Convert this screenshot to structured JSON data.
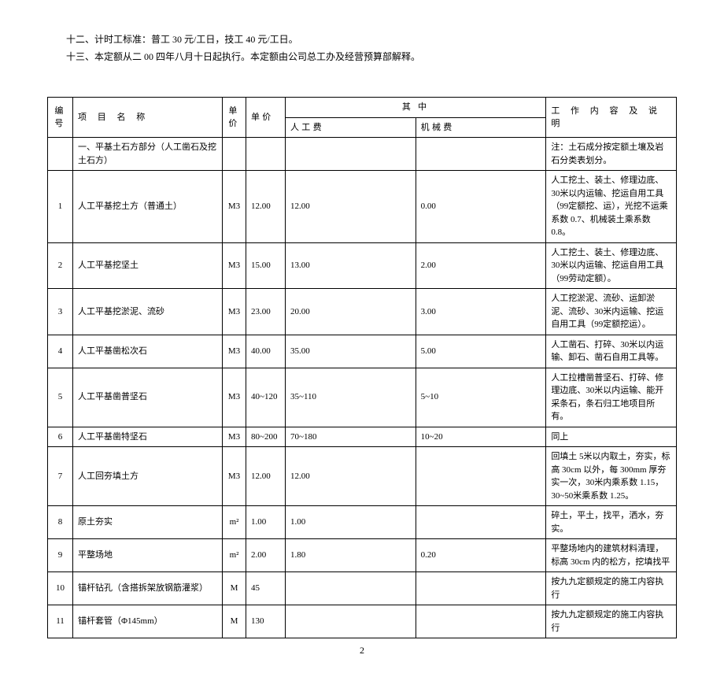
{
  "preamble": {
    "line1": "十二、计时工标准：普工 30 元/工日，技工 40 元/工日。",
    "line2": "十三、本定额从二 00 四年八月十日起执行。本定额由公司总工办及经营预算部解释。"
  },
  "table": {
    "headers": {
      "num": "编号",
      "name": "项 目 名 称",
      "unit": "单价",
      "price": "单价",
      "sub": "其 中",
      "labor": "人工费",
      "machine": "机械费",
      "desc": "工 作 内 容 及 说 明"
    },
    "section_row": {
      "name": "一、平基土石方部分（人工凿石及挖土石方）",
      "desc": "注：土石成分按定额土壤及岩石分类表划分。"
    },
    "rows": [
      {
        "num": "1",
        "name": "人工平基挖土方（普通土）",
        "unit": "M3",
        "price": "12.00",
        "labor": "12.00",
        "machine": "0.00",
        "desc": "人工挖土、装土、修理边底、30米以内运输、挖运自用工具（99定额挖、运），光挖不运乘系数 0.7、机械装土乘系数 0.8。"
      },
      {
        "num": "2",
        "name": "人工平基挖坚土",
        "unit": "M3",
        "price": "15.00",
        "labor": "13.00",
        "machine": "2.00",
        "desc": "人工挖土、装土、修理边底、30米以内运输、挖运自用工具（99劳动定额）。"
      },
      {
        "num": "3",
        "name": "人工平基挖淤泥、流砂",
        "unit": "M3",
        "price": "23.00",
        "labor": "20.00",
        "machine": "3.00",
        "desc": "人工挖淤泥、流砂、运卸淤泥、流砂、30米内运输、挖运自用工具（99定额挖运）。"
      },
      {
        "num": "4",
        "name": "人工平基凿松次石",
        "unit": "M3",
        "price": "40.00",
        "labor": "35.00",
        "machine": "5.00",
        "desc": "人工凿石、打碎、30米以内运输、卸石、凿石自用工具等。"
      },
      {
        "num": "5",
        "name": "人工平基凿普坚石",
        "unit": "M3",
        "price": "40~120",
        "labor": "35~110",
        "machine": "5~10",
        "desc": "人工拉槽凿普坚石、打碎、修理边底、30米以内运输、能开采条石，条石归工地项目所有。"
      },
      {
        "num": "6",
        "name": "人工平基凿特坚石",
        "unit": "M3",
        "price": "80~200",
        "labor": "70~180",
        "machine": "10~20",
        "desc": "同上"
      },
      {
        "num": "7",
        "name": "人工回夯填土方",
        "unit": "M3",
        "price": "12.00",
        "labor": "12.00",
        "machine": "",
        "desc": "回填土 5米以内取土，夯实，标高 30cm 以外，每 300mm 厚夯实一次，30米内乘系数 1.15，30~50米乘系数 1.25。"
      },
      {
        "num": "8",
        "name": "原土夯实",
        "unit": "m²",
        "price": "1.00",
        "labor": "1.00",
        "machine": "",
        "desc": "碎土，平土，找平，洒水，夯实。"
      },
      {
        "num": "9",
        "name": "平整场地",
        "unit": "m²",
        "price": "2.00",
        "labor": "1.80",
        "machine": "0.20",
        "desc": "平整场地内的建筑材料清理，标高 30cm 内的松方，挖填找平"
      },
      {
        "num": "10",
        "name": "锚杆钻孔（含搭拆架放钢筋灌浆）",
        "unit": "M",
        "price": "45",
        "labor": "",
        "machine": "",
        "desc": "按九九定额规定的施工内容执行"
      },
      {
        "num": "11",
        "name": "锚杆套管（Φ145mm）",
        "unit": "M",
        "price": "130",
        "labor": "",
        "machine": "",
        "desc": "按九九定额规定的施工内容执行"
      }
    ]
  },
  "page_number": "2"
}
